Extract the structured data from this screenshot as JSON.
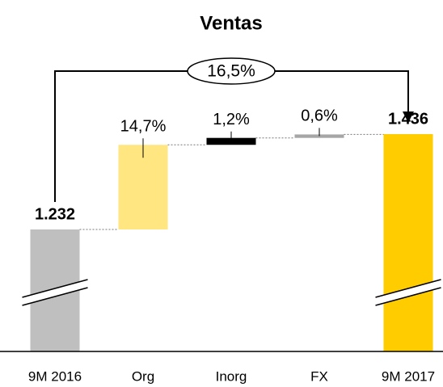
{
  "chart_data": {
    "type": "waterfall",
    "title": "Ventas",
    "categories": [
      "9M 2016",
      "Org",
      "Inorg",
      "FX",
      "9M 2017"
    ],
    "values": [
      1232,
      14.7,
      1.2,
      0.6,
      1436
    ],
    "value_labels": [
      "1.232",
      "14,7%",
      "1,2%",
      "0,6%",
      "1.436"
    ],
    "colors": [
      "#bfbfbf",
      "#ffe680",
      "#000000",
      "#a6a6a6",
      "#ffcc00"
    ],
    "total_change": {
      "value": 16.5,
      "label": "16,5%"
    }
  }
}
